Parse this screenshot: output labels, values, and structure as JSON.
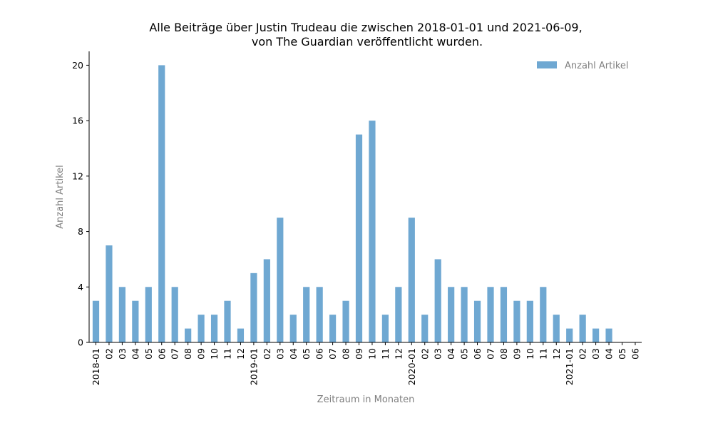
{
  "chart_data": {
    "type": "bar",
    "title": "Alle Beiträge über Justin Trudeau die zwischen 2018-01-01 und 2021-06-09,",
    "subtitle": "von The Guardian veröffentlicht wurden.",
    "xlabel": "Zeitraum in Monaten",
    "ylabel": "Anzahl Artikel",
    "ylim": [
      0,
      21
    ],
    "yticks": [
      0,
      4,
      8,
      12,
      16,
      20
    ],
    "grid": false,
    "legend_position": "top-right",
    "bar_color": "#6fa8d2",
    "categories": [
      "2018-01",
      "02",
      "03",
      "04",
      "05",
      "06",
      "07",
      "08",
      "09",
      "10",
      "11",
      "12",
      "2019-01",
      "02",
      "03",
      "04",
      "05",
      "06",
      "07",
      "08",
      "09",
      "10",
      "11",
      "12",
      "2020-01",
      "02",
      "03",
      "04",
      "05",
      "06",
      "07",
      "08",
      "09",
      "10",
      "11",
      "12",
      "2021-01",
      "02",
      "03",
      "04",
      "05",
      "06"
    ],
    "series": [
      {
        "name": "Anzahl Artikel",
        "values": [
          3,
          7,
          4,
          3,
          4,
          20,
          4,
          1,
          2,
          2,
          3,
          1,
          5,
          6,
          9,
          2,
          4,
          4,
          2,
          3,
          15,
          16,
          2,
          4,
          9,
          2,
          6,
          4,
          4,
          3,
          4,
          4,
          3,
          3,
          4,
          2,
          1,
          2,
          1,
          1,
          0,
          0
        ]
      }
    ]
  }
}
